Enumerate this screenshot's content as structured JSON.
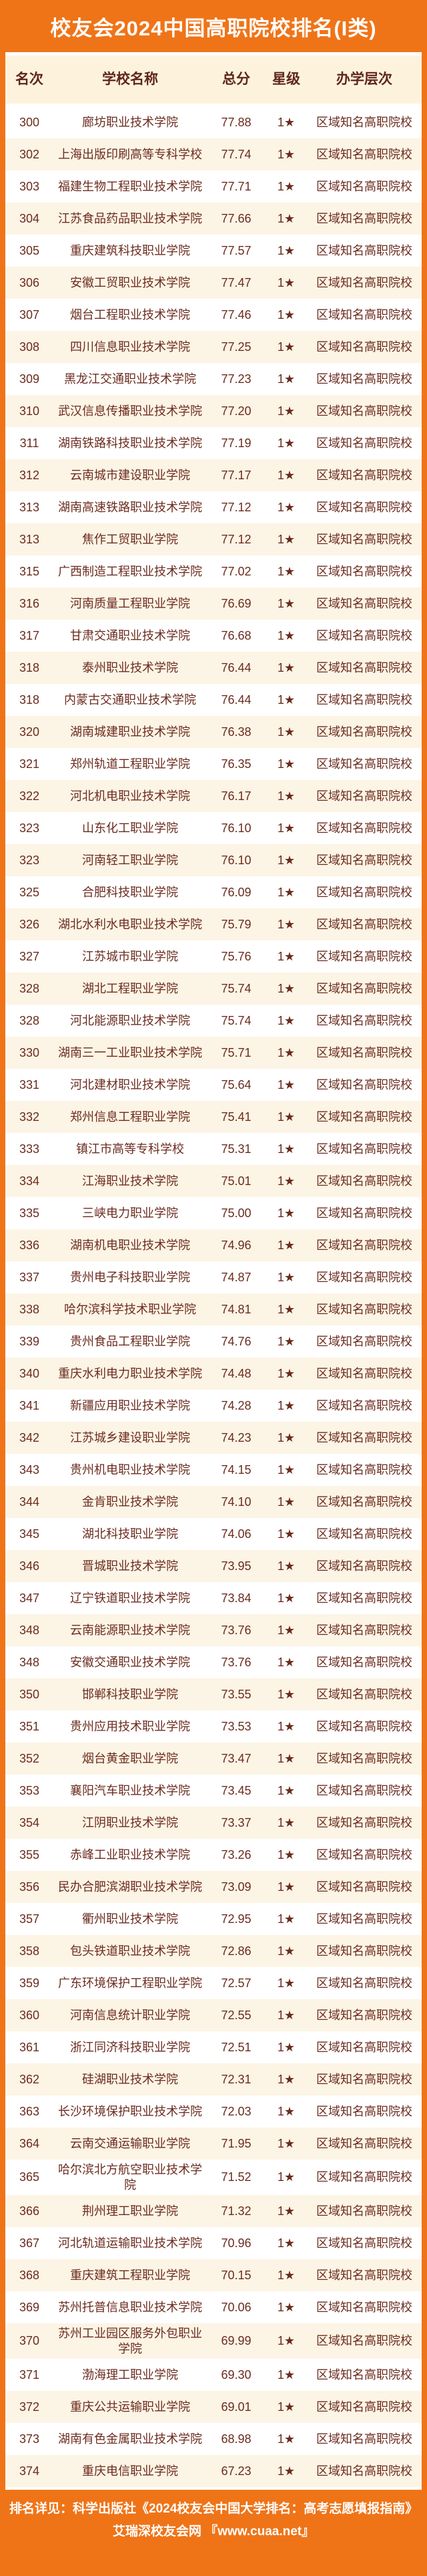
{
  "title": "校友会2024中国高职院校排名(I类)",
  "colors": {
    "accent_orange": "#ef7418",
    "header_cream": "#fdf3dd",
    "alt_row_cream": "#fcf4e5",
    "text_brown": "#6b2b1e",
    "title_white": "#ffffff"
  },
  "table": {
    "columns": [
      "名次",
      "学校名称",
      "总分",
      "星级",
      "办学层次"
    ],
    "rows": [
      [
        "300",
        "廊坊职业技术学院",
        "77.88",
        "1★",
        "区域知名高职院校"
      ],
      [
        "302",
        "上海出版印刷高等专科学校",
        "77.74",
        "1★",
        "区域知名高职院校"
      ],
      [
        "303",
        "福建生物工程职业技术学院",
        "77.71",
        "1★",
        "区域知名高职院校"
      ],
      [
        "304",
        "江苏食品药品职业技术学院",
        "77.66",
        "1★",
        "区域知名高职院校"
      ],
      [
        "305",
        "重庆建筑科技职业学院",
        "77.57",
        "1★",
        "区域知名高职院校"
      ],
      [
        "306",
        "安徽工贸职业技术学院",
        "77.47",
        "1★",
        "区域知名高职院校"
      ],
      [
        "307",
        "烟台工程职业技术学院",
        "77.46",
        "1★",
        "区域知名高职院校"
      ],
      [
        "308",
        "四川信息职业技术学院",
        "77.25",
        "1★",
        "区域知名高职院校"
      ],
      [
        "309",
        "黑龙江交通职业技术学院",
        "77.23",
        "1★",
        "区域知名高职院校"
      ],
      [
        "310",
        "武汉信息传播职业技术学院",
        "77.20",
        "1★",
        "区域知名高职院校"
      ],
      [
        "311",
        "湖南铁路科技职业技术学院",
        "77.19",
        "1★",
        "区域知名高职院校"
      ],
      [
        "312",
        "云南城市建设职业学院",
        "77.17",
        "1★",
        "区域知名高职院校"
      ],
      [
        "313",
        "湖南高速铁路职业技术学院",
        "77.12",
        "1★",
        "区域知名高职院校"
      ],
      [
        "313",
        "焦作工贸职业学院",
        "77.12",
        "1★",
        "区域知名高职院校"
      ],
      [
        "315",
        "广西制造工程职业技术学院",
        "77.02",
        "1★",
        "区域知名高职院校"
      ],
      [
        "316",
        "河南质量工程职业学院",
        "76.69",
        "1★",
        "区域知名高职院校"
      ],
      [
        "317",
        "甘肃交通职业技术学院",
        "76.68",
        "1★",
        "区域知名高职院校"
      ],
      [
        "318",
        "泰州职业技术学院",
        "76.44",
        "1★",
        "区域知名高职院校"
      ],
      [
        "318",
        "内蒙古交通职业技术学院",
        "76.44",
        "1★",
        "区域知名高职院校"
      ],
      [
        "320",
        "湖南城建职业技术学院",
        "76.38",
        "1★",
        "区域知名高职院校"
      ],
      [
        "321",
        "郑州轨道工程职业学院",
        "76.35",
        "1★",
        "区域知名高职院校"
      ],
      [
        "322",
        "河北机电职业技术学院",
        "76.17",
        "1★",
        "区域知名高职院校"
      ],
      [
        "323",
        "山东化工职业学院",
        "76.10",
        "1★",
        "区域知名高职院校"
      ],
      [
        "323",
        "河南轻工职业学院",
        "76.10",
        "1★",
        "区域知名高职院校"
      ],
      [
        "325",
        "合肥科技职业学院",
        "76.09",
        "1★",
        "区域知名高职院校"
      ],
      [
        "326",
        "湖北水利水电职业技术学院",
        "75.79",
        "1★",
        "区域知名高职院校"
      ],
      [
        "327",
        "江苏城市职业学院",
        "75.76",
        "1★",
        "区域知名高职院校"
      ],
      [
        "328",
        "湖北工程职业学院",
        "75.74",
        "1★",
        "区域知名高职院校"
      ],
      [
        "328",
        "河北能源职业技术学院",
        "75.74",
        "1★",
        "区域知名高职院校"
      ],
      [
        "330",
        "湖南三一工业职业技术学院",
        "75.71",
        "1★",
        "区域知名高职院校"
      ],
      [
        "331",
        "河北建材职业技术学院",
        "75.64",
        "1★",
        "区域知名高职院校"
      ],
      [
        "332",
        "郑州信息工程职业学院",
        "75.41",
        "1★",
        "区域知名高职院校"
      ],
      [
        "333",
        "镇江市高等专科学校",
        "75.31",
        "1★",
        "区域知名高职院校"
      ],
      [
        "334",
        "江海职业技术学院",
        "75.01",
        "1★",
        "区域知名高职院校"
      ],
      [
        "335",
        "三峡电力职业学院",
        "75.00",
        "1★",
        "区域知名高职院校"
      ],
      [
        "336",
        "湖南机电职业技术学院",
        "74.96",
        "1★",
        "区域知名高职院校"
      ],
      [
        "337",
        "贵州电子科技职业学院",
        "74.87",
        "1★",
        "区域知名高职院校"
      ],
      [
        "338",
        "哈尔滨科学技术职业学院",
        "74.81",
        "1★",
        "区域知名高职院校"
      ],
      [
        "339",
        "贵州食品工程职业学院",
        "74.76",
        "1★",
        "区域知名高职院校"
      ],
      [
        "340",
        "重庆水利电力职业技术学院",
        "74.48",
        "1★",
        "区域知名高职院校"
      ],
      [
        "341",
        "新疆应用职业技术学院",
        "74.28",
        "1★",
        "区域知名高职院校"
      ],
      [
        "342",
        "江苏城乡建设职业学院",
        "74.23",
        "1★",
        "区域知名高职院校"
      ],
      [
        "343",
        "贵州机电职业技术学院",
        "74.15",
        "1★",
        "区域知名高职院校"
      ],
      [
        "344",
        "金肯职业技术学院",
        "74.10",
        "1★",
        "区域知名高职院校"
      ],
      [
        "345",
        "湖北科技职业学院",
        "74.06",
        "1★",
        "区域知名高职院校"
      ],
      [
        "346",
        "晋城职业技术学院",
        "73.95",
        "1★",
        "区域知名高职院校"
      ],
      [
        "347",
        "辽宁铁道职业技术学院",
        "73.84",
        "1★",
        "区域知名高职院校"
      ],
      [
        "348",
        "云南能源职业技术学院",
        "73.76",
        "1★",
        "区域知名高职院校"
      ],
      [
        "348",
        "安徽交通职业技术学院",
        "73.76",
        "1★",
        "区域知名高职院校"
      ],
      [
        "350",
        "邯郸科技职业学院",
        "73.55",
        "1★",
        "区域知名高职院校"
      ],
      [
        "351",
        "贵州应用技术职业学院",
        "73.53",
        "1★",
        "区域知名高职院校"
      ],
      [
        "352",
        "烟台黄金职业学院",
        "73.47",
        "1★",
        "区域知名高职院校"
      ],
      [
        "353",
        "襄阳汽车职业技术学院",
        "73.45",
        "1★",
        "区域知名高职院校"
      ],
      [
        "354",
        "江阴职业技术学院",
        "73.37",
        "1★",
        "区域知名高职院校"
      ],
      [
        "355",
        "赤峰工业职业技术学院",
        "73.26",
        "1★",
        "区域知名高职院校"
      ],
      [
        "356",
        "民办合肥滨湖职业技术学院",
        "73.09",
        "1★",
        "区域知名高职院校"
      ],
      [
        "357",
        "衢州职业技术学院",
        "72.95",
        "1★",
        "区域知名高职院校"
      ],
      [
        "358",
        "包头铁道职业技术学院",
        "72.86",
        "1★",
        "区域知名高职院校"
      ],
      [
        "359",
        "广东环境保护工程职业学院",
        "72.57",
        "1★",
        "区域知名高职院校"
      ],
      [
        "360",
        "河南信息统计职业学院",
        "72.55",
        "1★",
        "区域知名高职院校"
      ],
      [
        "361",
        "浙江同济科技职业学院",
        "72.51",
        "1★",
        "区域知名高职院校"
      ],
      [
        "362",
        "硅湖职业技术学院",
        "72.31",
        "1★",
        "区域知名高职院校"
      ],
      [
        "363",
        "长沙环境保护职业技术学院",
        "72.03",
        "1★",
        "区域知名高职院校"
      ],
      [
        "364",
        "云南交通运输职业学院",
        "71.95",
        "1★",
        "区域知名高职院校"
      ],
      [
        "365",
        "哈尔滨北方航空职业技术学院",
        "71.52",
        "1★",
        "区域知名高职院校"
      ],
      [
        "366",
        "荆州理工职业学院",
        "71.32",
        "1★",
        "区域知名高职院校"
      ],
      [
        "367",
        "河北轨道运输职业技术学院",
        "70.96",
        "1★",
        "区域知名高职院校"
      ],
      [
        "368",
        "重庆建筑工程职业学院",
        "70.15",
        "1★",
        "区域知名高职院校"
      ],
      [
        "369",
        "苏州托普信息职业技术学院",
        "70.06",
        "1★",
        "区域知名高职院校"
      ],
      [
        "370",
        "苏州工业园区服务外包职业学院",
        "69.99",
        "1★",
        "区域知名高职院校"
      ],
      [
        "371",
        "渤海理工职业学院",
        "69.30",
        "1★",
        "区域知名高职院校"
      ],
      [
        "372",
        "重庆公共运输职业学院",
        "69.01",
        "1★",
        "区域知名高职院校"
      ],
      [
        "373",
        "湖南有色金属职业技术学院",
        "68.98",
        "1★",
        "区域知名高职院校"
      ],
      [
        "374",
        "重庆电信职业学院",
        "67.23",
        "1★",
        "区域知名高职院校"
      ]
    ]
  },
  "footer": {
    "line1": "排名详见：科学出版社《2024校友会中国大学排名：高考志愿填报指南》",
    "line2": "艾瑞深校友会网 『www.cuaa.net』"
  }
}
